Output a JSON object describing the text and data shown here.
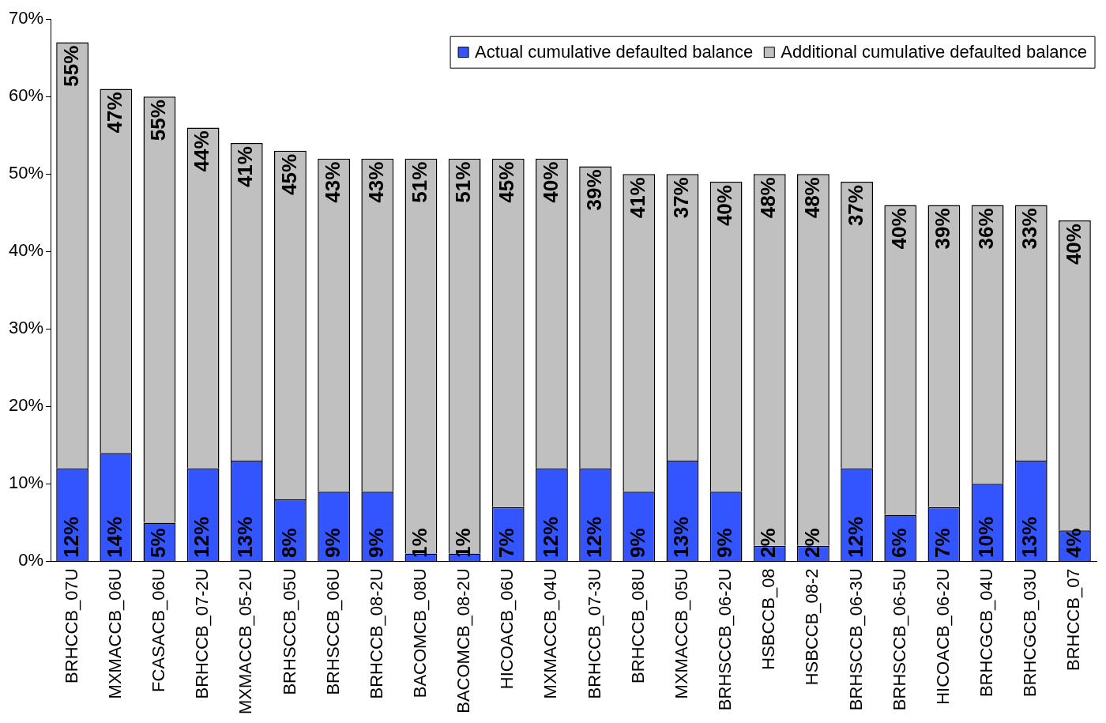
{
  "chart_data": {
    "type": "bar",
    "stacked": true,
    "categories": [
      "BRHCCB_07U",
      "MXMACCB_06U",
      "FCASACB_06U",
      "BRHCCB_07-2U",
      "MXMACCB_05-2U",
      "BRHSCCB_05U",
      "BRHSCCB_06U",
      "BRHCCB_08-2U",
      "BACOMCB_08U",
      "BACOMCB_08-2U",
      "HICOACB_06U",
      "MXMACCB_04U",
      "BRHCCB_07-3U",
      "BRHCCB_08U",
      "MXMACCB_05U",
      "BRHSCCB_06-2U",
      "HSBCCB_08",
      "HSBCCB_08-2",
      "BRHSCCB_06-3U",
      "BRHSCCB_06-5U",
      "HICOACB_06-2U",
      "BRHCGCB_04U",
      "BRHCGCB_03U",
      "BRHCCB_07"
    ],
    "series": [
      {
        "name": "Actual cumulative defaulted balance",
        "color": "#3355ff",
        "values": [
          12,
          14,
          5,
          12,
          13,
          8,
          9,
          9,
          1,
          1,
          7,
          12,
          12,
          9,
          13,
          9,
          2,
          2,
          12,
          6,
          7,
          10,
          13,
          4
        ],
        "value_labels": [
          "12%",
          "14%",
          "5%",
          "12%",
          "13%",
          "8%",
          "9%",
          "9%",
          "1%",
          "1%",
          "7%",
          "12%",
          "12%",
          "9%",
          "13%",
          "9%",
          "2%",
          "2%",
          "12%",
          "6%",
          "7%",
          "10%",
          "13%",
          "4%"
        ]
      },
      {
        "name": "Additional cumulative defaulted balance",
        "color": "#c0c0c0",
        "values": [
          55,
          47,
          55,
          44,
          41,
          45,
          43,
          43,
          51,
          51,
          45,
          40,
          39,
          41,
          37,
          40,
          48,
          48,
          37,
          40,
          39,
          36,
          33,
          40
        ],
        "value_labels": [
          "55%",
          "47%",
          "55%",
          "44%",
          "41%",
          "45%",
          "43%",
          "43%",
          "51%",
          "51%",
          "45%",
          "40%",
          "39%",
          "41%",
          "37%",
          "40%",
          "48%",
          "48%",
          "37%",
          "40%",
          "39%",
          "36%",
          "33%",
          "40%"
        ]
      }
    ],
    "ylim": [
      0,
      70
    ],
    "yticks": [
      {
        "value": 0,
        "label": "0%"
      },
      {
        "value": 10,
        "label": "10%"
      },
      {
        "value": 20,
        "label": "20%"
      },
      {
        "value": 30,
        "label": "30%"
      },
      {
        "value": 40,
        "label": "40%"
      },
      {
        "value": 50,
        "label": "50%"
      },
      {
        "value": 60,
        "label": "60%"
      },
      {
        "value": 70,
        "label": "70%"
      }
    ],
    "grid": false,
    "legend": "top right"
  }
}
